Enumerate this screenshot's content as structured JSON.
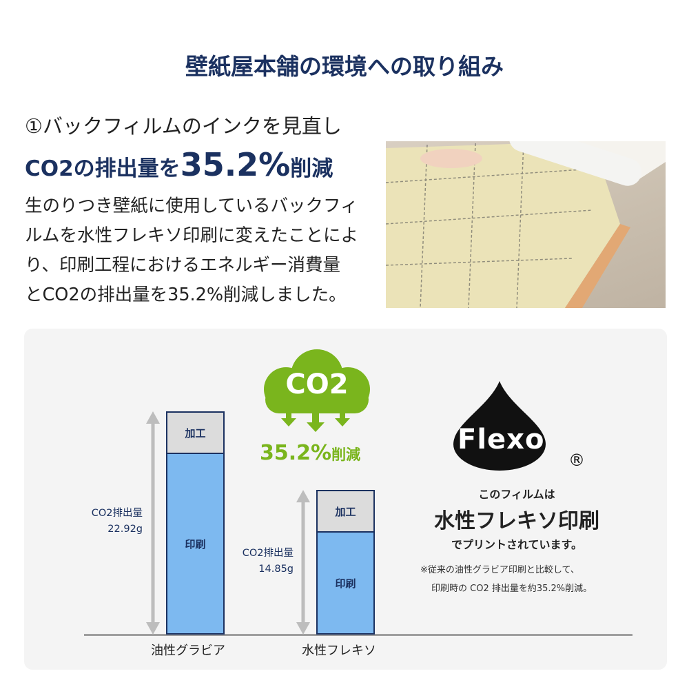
{
  "title": "壁紙屋本舗の環境への取り組み",
  "heading": {
    "line1": "①バックフィルムのインクを見直し",
    "line2_prefix": "CO2の排出量を",
    "line2_value": "35.2%",
    "line2_suffix": "削減"
  },
  "body_lines": [
    "生のりつき壁紙に使用しているバックフィ",
    "ルムを水性フレキソ印刷に変えたことによ",
    "り、印刷工程におけるエネルギー消費量",
    "とCO2の排出量を35.2%削減しました。"
  ],
  "cloud": {
    "label": "CO2",
    "reduction": "35.2%",
    "reduction_suffix": "削減",
    "color": "#7ab51d"
  },
  "chart_data": {
    "type": "bar",
    "categories": [
      "油性グラビア",
      "水性フレキソ"
    ],
    "series": [
      {
        "name": "印刷"
      },
      {
        "name": "加工"
      }
    ],
    "totals": [
      22.92,
      14.85
    ],
    "value_labels": [
      {
        "label": "CO2排出量",
        "value": "22.92g"
      },
      {
        "label": "CO2排出量",
        "value": "14.85g"
      }
    ],
    "segment_labels": {
      "process": "加工",
      "print": "印刷"
    },
    "colors": {
      "print": "#7db9f0",
      "process": "#dcdcdc",
      "outline": "#1b3160"
    }
  },
  "flexo": {
    "logo": "Flexo",
    "registered": "®",
    "line1": "このフィルムは",
    "line2": "水性フレキソ印刷",
    "line3": "でプリントされています。",
    "note1": "※従来の油性グラビア印刷と比較して、",
    "note2": "印刷時の CO2 排出量を約35.2%削減。"
  }
}
